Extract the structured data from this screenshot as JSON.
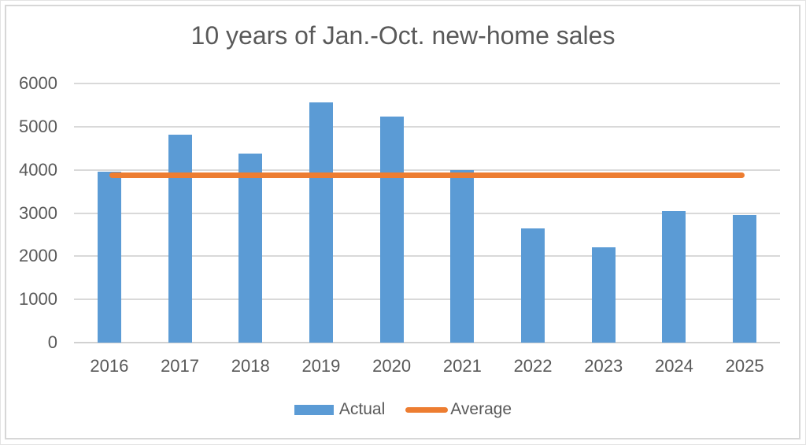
{
  "title": "10 years of Jan.-Oct. new-home sales",
  "colors": {
    "bar_fill": "#5b9bd5",
    "average_line": "#ed7d31",
    "text": "#595959",
    "gridline": "#d9d9d9",
    "frame_border": "#d7d7d7"
  },
  "legend": {
    "actual_label": "Actual",
    "average_label": "Average"
  },
  "chart_data": {
    "type": "bar",
    "title": "10 years of Jan.-Oct. new-home sales",
    "categories": [
      "2016",
      "2017",
      "2018",
      "2019",
      "2020",
      "2021",
      "2022",
      "2023",
      "2024",
      "2025"
    ],
    "series": [
      {
        "name": "Actual",
        "type": "bar",
        "values": [
          3950,
          4810,
          4380,
          5570,
          5240,
          4000,
          2650,
          2210,
          3050,
          2950
        ]
      },
      {
        "name": "Average",
        "type": "line",
        "value": 3880
      }
    ],
    "xlabel": "",
    "ylabel": "",
    "ylim": [
      0,
      6000
    ],
    "yticks": [
      0,
      1000,
      2000,
      3000,
      4000,
      5000,
      6000
    ],
    "grid": true,
    "legend_position": "bottom"
  }
}
